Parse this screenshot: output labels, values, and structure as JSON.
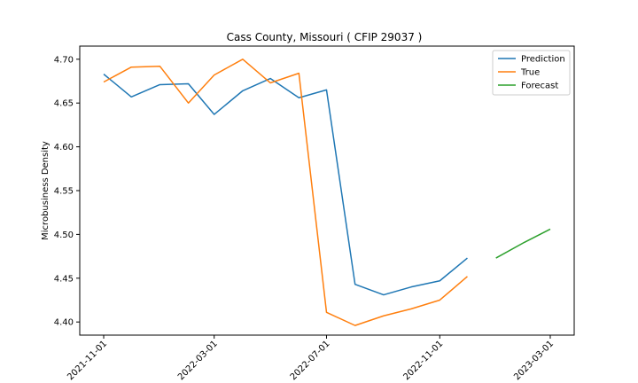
{
  "chart_data": {
    "type": "line",
    "title": "Cass County, Missouri ( CFIP 29037 )",
    "xlabel": "",
    "ylabel": "Microbusiness Density",
    "ylim": [
      4.385,
      4.715
    ],
    "xlim": [
      "2021-10-06",
      "2023-03-27"
    ],
    "y_ticks": [
      "4.40",
      "4.45",
      "4.50",
      "4.55",
      "4.60",
      "4.65",
      "4.70"
    ],
    "x_ticks": [
      "2021-11-01",
      "2022-03-01",
      "2022-07-01",
      "2022-11-01",
      "2023-03-01"
    ],
    "grid": false,
    "legend_position": "top-right",
    "series": [
      {
        "name": "Prediction",
        "color": "#1f77b4",
        "x": [
          "2021-11-01",
          "2021-12-01",
          "2022-01-01",
          "2022-02-01",
          "2022-03-01",
          "2022-04-01",
          "2022-05-01",
          "2022-06-01",
          "2022-07-01",
          "2022-08-01",
          "2022-09-01",
          "2022-10-01",
          "2022-11-01",
          "2022-12-01"
        ],
        "values": [
          4.683,
          4.657,
          4.671,
          4.672,
          4.637,
          4.664,
          4.678,
          4.656,
          4.665,
          4.443,
          4.431,
          4.44,
          4.447,
          4.473
        ]
      },
      {
        "name": "True",
        "color": "#ff7f0e",
        "x": [
          "2021-11-01",
          "2021-12-01",
          "2022-01-01",
          "2022-02-01",
          "2022-03-01",
          "2022-04-01",
          "2022-05-01",
          "2022-06-01",
          "2022-07-01",
          "2022-08-01",
          "2022-09-01",
          "2022-10-01",
          "2022-11-01",
          "2022-12-01"
        ],
        "values": [
          4.674,
          4.691,
          4.692,
          4.65,
          4.682,
          4.7,
          4.673,
          4.684,
          4.411,
          4.396,
          4.407,
          4.415,
          4.425,
          4.452
        ]
      },
      {
        "name": "Forecast",
        "color": "#2ca02c",
        "x": [
          "2023-01-01",
          "2023-02-01",
          "2023-03-01"
        ],
        "values": [
          4.473,
          4.491,
          4.506
        ]
      }
    ]
  }
}
